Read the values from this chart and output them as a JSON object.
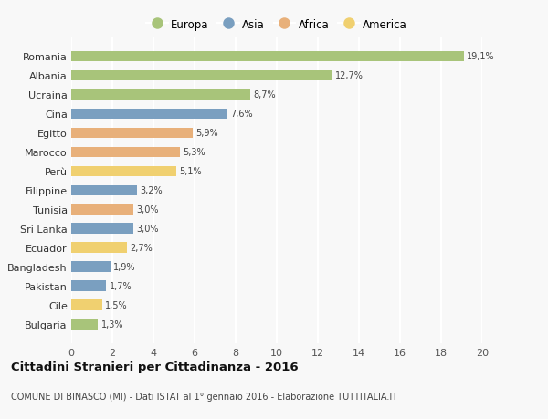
{
  "categories": [
    "Romania",
    "Albania",
    "Ucraina",
    "Cina",
    "Egitto",
    "Marocco",
    "Perù",
    "Filippine",
    "Tunisia",
    "Sri Lanka",
    "Ecuador",
    "Bangladesh",
    "Pakistan",
    "Cile",
    "Bulgaria"
  ],
  "values": [
    19.1,
    12.7,
    8.7,
    7.6,
    5.9,
    5.3,
    5.1,
    3.2,
    3.0,
    3.0,
    2.7,
    1.9,
    1.7,
    1.5,
    1.3
  ],
  "labels": [
    "19,1%",
    "12,7%",
    "8,7%",
    "7,6%",
    "5,9%",
    "5,3%",
    "5,1%",
    "3,2%",
    "3,0%",
    "3,0%",
    "2,7%",
    "1,9%",
    "1,7%",
    "1,5%",
    "1,3%"
  ],
  "continents": [
    "Europa",
    "Europa",
    "Europa",
    "Asia",
    "Africa",
    "Africa",
    "America",
    "Asia",
    "Africa",
    "Asia",
    "America",
    "Asia",
    "Asia",
    "America",
    "Europa"
  ],
  "continent_colors": {
    "Europa": "#a8c47a",
    "Asia": "#7a9fc0",
    "Africa": "#e8b07a",
    "America": "#f0d070"
  },
  "legend_order": [
    "Europa",
    "Asia",
    "Africa",
    "America"
  ],
  "title": "Cittadini Stranieri per Cittadinanza - 2016",
  "subtitle": "COMUNE DI BINASCO (MI) - Dati ISTAT al 1° gennaio 2016 - Elaborazione TUTTITALIA.IT",
  "xlim": [
    0,
    20
  ],
  "xticks": [
    0,
    2,
    4,
    6,
    8,
    10,
    12,
    14,
    16,
    18,
    20
  ],
  "background_color": "#f8f8f8",
  "grid_color": "#ffffff",
  "bar_height": 0.55
}
